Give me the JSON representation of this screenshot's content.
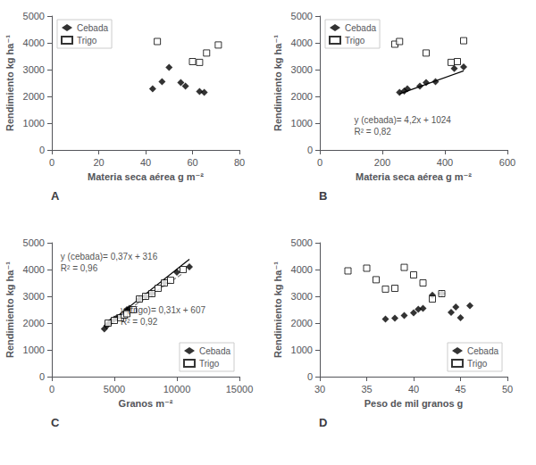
{
  "chart_data": [
    {
      "type": "scatter",
      "title": "A",
      "xlabel": "Materia seca aérea g m⁻²",
      "ylabel": "Rendimiento kg ha⁻¹",
      "xlim": [
        0,
        80
      ],
      "ylim": [
        0,
        5000
      ],
      "xticks": [
        0,
        20,
        40,
        60,
        80
      ],
      "yticks": [
        0,
        1000,
        2000,
        3000,
        4000,
        5000
      ],
      "grid": false,
      "legend": "upper left",
      "series": [
        {
          "name": "Cebada",
          "type": "scatter",
          "color": "#000000",
          "marker": "diamond",
          "x": [
            43,
            47,
            50,
            55,
            57,
            63,
            65
          ],
          "values": [
            2280,
            2550,
            3080,
            2520,
            2380,
            2180,
            2150
          ]
        },
        {
          "name": "Trigo",
          "type": "scatter",
          "color": "#000000",
          "marker": "open square",
          "x": [
            45,
            60,
            63,
            66,
            71
          ],
          "values": [
            4050,
            3300,
            3270,
            3620,
            3920
          ]
        }
      ]
    },
    {
      "type": "scatter",
      "title": "B",
      "xlabel": "Materia seca aérea g m⁻²",
      "ylabel": "Rendimiento kg ha⁻¹",
      "xlim": [
        0,
        600
      ],
      "ylim": [
        0,
        5000
      ],
      "xticks": [
        0,
        200,
        400,
        600
      ],
      "yticks": [
        0,
        1000,
        2000,
        3000,
        4000,
        5000
      ],
      "grid": false,
      "legend": "upper left",
      "series": [
        {
          "name": "Cebada",
          "type": "scatter",
          "color": "#000000",
          "marker": "diamond",
          "x": [
            255,
            270,
            280,
            320,
            340,
            370,
            430,
            460
          ],
          "values": [
            2150,
            2200,
            2280,
            2380,
            2520,
            2550,
            3040,
            3100
          ]
        },
        {
          "name": "Trigo",
          "type": "scatter",
          "color": "#000000",
          "marker": "open square",
          "x": [
            240,
            255,
            340,
            420,
            440,
            460
          ],
          "values": [
            3950,
            4050,
            3620,
            3270,
            3300,
            4080
          ]
        },
        {
          "type": "line",
          "color": "#000000",
          "line_style": "solid",
          "x": [
            255,
            460
          ],
          "values": [
            2095,
            2956
          ]
        }
      ],
      "annotations": [
        {
          "text": "y (cebada)= 4,2x + 1024\nR² = 0,82",
          "x": 110,
          "y": 1350
        }
      ]
    },
    {
      "type": "scatter",
      "title": "C",
      "xlabel": "Granos m⁻²",
      "ylabel": "Rendimiento kg ha⁻¹",
      "xlim": [
        0,
        15000
      ],
      "ylim": [
        0,
        5000
      ],
      "xticks": [
        0,
        5000,
        10000,
        15000
      ],
      "yticks": [
        0,
        1000,
        2000,
        3000,
        4000,
        5000
      ],
      "grid": false,
      "legend": "lower right",
      "series": [
        {
          "name": "Cebada",
          "type": "scatter",
          "color": "#000000",
          "marker": "diamond",
          "x": [
            4200,
            4400,
            4600,
            4700,
            5000,
            5200,
            5500,
            5800,
            6000,
            6200,
            7000,
            7500,
            8000,
            9000,
            10000,
            11000
          ],
          "values": [
            1780,
            1900,
            2000,
            2050,
            2150,
            2200,
            2250,
            2350,
            2500,
            2550,
            2900,
            3000,
            3100,
            3500,
            3900,
            4100
          ]
        },
        {
          "name": "Trigo",
          "type": "scatter",
          "color": "#000000",
          "marker": "open square",
          "x": [
            4500,
            5000,
            5500,
            5800,
            6000,
            6500,
            7000,
            7500,
            8000,
            8500,
            9000,
            9500,
            10500
          ],
          "values": [
            2000,
            2100,
            2200,
            2300,
            2350,
            2500,
            2900,
            3000,
            3100,
            3300,
            3500,
            3600,
            4000
          ]
        },
        {
          "type": "line",
          "color": "#000000",
          "line_style": "solid",
          "x": [
            4200,
            11000
          ],
          "values": [
            1870,
            4386
          ]
        },
        {
          "type": "line",
          "color": "#808080",
          "line_style": "dashed",
          "x": [
            4500,
            10500
          ],
          "values": [
            2002,
            3862
          ]
        }
      ],
      "annotations": [
        {
          "text": "y (cebada)= 0,37x + 316\nR² = 0,96",
          "x": 700,
          "y": 4700
        },
        {
          "text": "y (trigo)= 0,31x + 607\nR² = 0,92",
          "x": 5500,
          "y": 2700
        }
      ]
    },
    {
      "type": "scatter",
      "title": "D",
      "xlabel": "Peso de mil granos g",
      "ylabel": "Rendimiento kg ha⁻¹",
      "xlim": [
        30,
        50
      ],
      "ylim": [
        0,
        5000
      ],
      "xticks": [
        30,
        35,
        40,
        45,
        50
      ],
      "yticks": [
        0,
        1000,
        2000,
        3000,
        4000,
        5000
      ],
      "grid": false,
      "legend": "lower right",
      "series": [
        {
          "name": "Cebada",
          "type": "scatter",
          "color": "#000000",
          "marker": "diamond",
          "x": [
            37,
            38,
            39,
            40,
            40.5,
            41,
            42,
            43,
            44,
            44.5,
            45,
            46
          ],
          "values": [
            2150,
            2180,
            2280,
            2380,
            2520,
            2550,
            3040,
            3100,
            2400,
            2600,
            2200,
            2650
          ]
        },
        {
          "name": "Trigo",
          "type": "scatter",
          "color": "#000000",
          "marker": "open square",
          "x": [
            33,
            35,
            36,
            37,
            38,
            39,
            40,
            41,
            42,
            43
          ],
          "values": [
            3950,
            4050,
            3620,
            3270,
            3300,
            4080,
            3800,
            3500,
            2900,
            3100
          ]
        }
      ]
    }
  ]
}
